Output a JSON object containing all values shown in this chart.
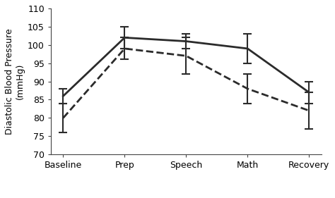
{
  "categories": [
    "Baseline",
    "Prep",
    "Speech",
    "Math",
    "Recovery"
  ],
  "high_e1g": {
    "values": [
      86,
      102,
      101,
      99,
      87
    ],
    "errors": [
      2,
      3,
      2,
      4,
      3
    ],
    "linestyle": "-",
    "color": "#2b2b2b"
  },
  "low_e1g": {
    "values": [
      80,
      99,
      97,
      88,
      82
    ],
    "errors": [
      4,
      3,
      5,
      4,
      5
    ],
    "linestyle": "--",
    "color": "#2b2b2b"
  },
  "ylabel": "Diastolic Blood Pressure\n(mmHg)",
  "ylim": [
    70,
    110
  ],
  "yticks": [
    70,
    75,
    80,
    85,
    90,
    95,
    100,
    105,
    110
  ],
  "background_color": "#ffffff",
  "linewidth": 2.0,
  "capsize": 4,
  "elinewidth": 1.5,
  "tick_fontsize": 9,
  "label_fontsize": 9,
  "legend_fontsize": 9
}
